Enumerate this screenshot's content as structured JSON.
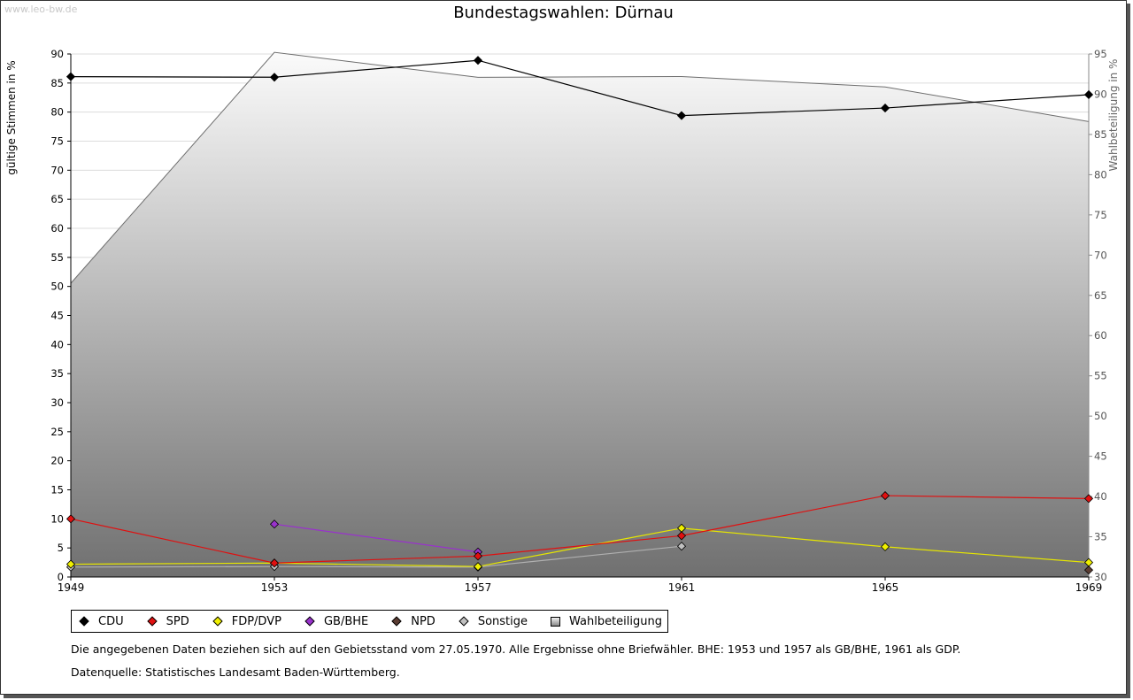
{
  "watermark": "www.leo-bw.de",
  "title": "Bundestagswahlen: Dürnau",
  "legend": [
    {
      "label": "CDU",
      "color": "#000000"
    },
    {
      "label": "SPD",
      "color": "#e01010"
    },
    {
      "label": "FDP/DVP",
      "color": "#f0f000"
    },
    {
      "label": "GB/BHE",
      "color": "#9932cc"
    },
    {
      "label": "NPD",
      "color": "#5a3c32"
    },
    {
      "label": "Sonstige",
      "color": "#c0c0c0"
    },
    {
      "label": "Wahlbeteiligung",
      "color": "#c8c8c8"
    }
  ],
  "notes": {
    "line1": "Die angegebenen Daten beziehen sich auf den Gebietsstand vom 27.05.1970. Alle Ergebnisse ohne Briefwähler. BHE: 1953 und 1957 als GB/BHE, 1961 als GDP.",
    "line2": "Datenquelle: Statistisches Landesamt Baden-Württemberg."
  },
  "chart_data": {
    "type": "line",
    "x": [
      1949,
      1953,
      1957,
      1961,
      1965,
      1969
    ],
    "ylabel": "gültige Stimmen in %",
    "y2label": "Wahlbeteiligung in %",
    "ylim": [
      0,
      90
    ],
    "yticks": [
      0,
      5,
      10,
      15,
      20,
      25,
      30,
      35,
      40,
      45,
      50,
      55,
      60,
      65,
      70,
      75,
      80,
      85,
      90
    ],
    "y2lim": [
      30,
      95
    ],
    "y2ticks": [
      30,
      35,
      40,
      45,
      50,
      55,
      60,
      65,
      70,
      75,
      80,
      85,
      90,
      95
    ],
    "grid": true,
    "turnout": {
      "name": "Wahlbeteiligung",
      "type": "area",
      "axis": "right",
      "values": [
        66.5,
        95.2,
        92.1,
        92.2,
        90.9,
        86.6
      ]
    },
    "series": [
      {
        "name": "CDU",
        "color": "#000000",
        "values": [
          86.1,
          86.0,
          88.9,
          79.4,
          80.7,
          83.0
        ]
      },
      {
        "name": "SPD",
        "color": "#e01010",
        "values": [
          10.0,
          2.4,
          3.6,
          7.1,
          14.0,
          13.5
        ]
      },
      {
        "name": "FDP/DVP",
        "color": "#f0f000",
        "values": [
          2.2,
          2.4,
          1.8,
          8.4,
          5.2,
          2.5
        ]
      },
      {
        "name": "GB/BHE",
        "color": "#9932cc",
        "values": [
          null,
          9.1,
          4.3,
          null,
          null,
          null
        ]
      },
      {
        "name": "NPD",
        "color": "#5a3c32",
        "values": [
          null,
          null,
          null,
          null,
          null,
          1.2
        ]
      },
      {
        "name": "Sonstige",
        "color": "#c0c0c0",
        "values": [
          1.7,
          1.8,
          1.7,
          5.3,
          null,
          null
        ]
      }
    ]
  }
}
